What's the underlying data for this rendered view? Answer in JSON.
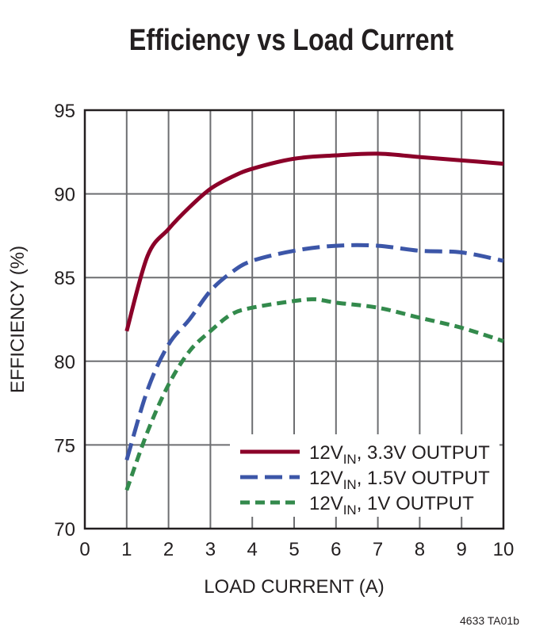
{
  "chart_data": {
    "type": "line",
    "title": "Efficiency vs Load Current",
    "xlabel": "LOAD CURRENT (A)",
    "ylabel": "EFFICIENCY (%)",
    "xlim": [
      0,
      10
    ],
    "ylim": [
      70,
      95
    ],
    "xticks": [
      0,
      1,
      2,
      3,
      4,
      5,
      6,
      7,
      8,
      9,
      10
    ],
    "yticks": [
      70,
      75,
      80,
      85,
      90,
      95
    ],
    "grid": true,
    "legend_position": "bottom-right",
    "series": [
      {
        "name_main": "12V",
        "name_sub": "IN",
        "name_rest": ", 3.3V OUTPUT",
        "color": "#8b0029",
        "dash": "solid",
        "x": [
          1,
          1.5,
          2,
          2.5,
          3,
          3.5,
          4,
          5,
          6,
          7,
          8,
          9,
          10
        ],
        "y": [
          81.8,
          86.3,
          87.9,
          89.2,
          90.3,
          91.0,
          91.5,
          92.1,
          92.3,
          92.4,
          92.2,
          92.0,
          91.8
        ]
      },
      {
        "name_main": "12V",
        "name_sub": "IN",
        "name_rest": ", 1.5V OUTPUT",
        "color": "#3c56a8",
        "dash": "long-dash",
        "x": [
          1,
          1.5,
          2,
          2.5,
          3,
          3.5,
          4,
          5,
          6,
          7,
          8,
          9,
          10
        ],
        "y": [
          74.1,
          78.3,
          81.0,
          82.5,
          84.2,
          85.3,
          86.0,
          86.6,
          86.9,
          86.9,
          86.6,
          86.5,
          86.0
        ]
      },
      {
        "name_main": "12V",
        "name_sub": "IN",
        "name_rest": ", 1V OUTPUT",
        "color": "#338a4c",
        "dash": "short-dash",
        "x": [
          1,
          1.5,
          2,
          2.5,
          3,
          3.5,
          4,
          5,
          5.5,
          6,
          7,
          8,
          9,
          10
        ],
        "y": [
          72.3,
          75.8,
          78.6,
          80.6,
          81.8,
          82.8,
          83.2,
          83.6,
          83.7,
          83.5,
          83.2,
          82.6,
          82.0,
          81.2
        ]
      }
    ]
  },
  "figure_code": "4633 TA01b"
}
